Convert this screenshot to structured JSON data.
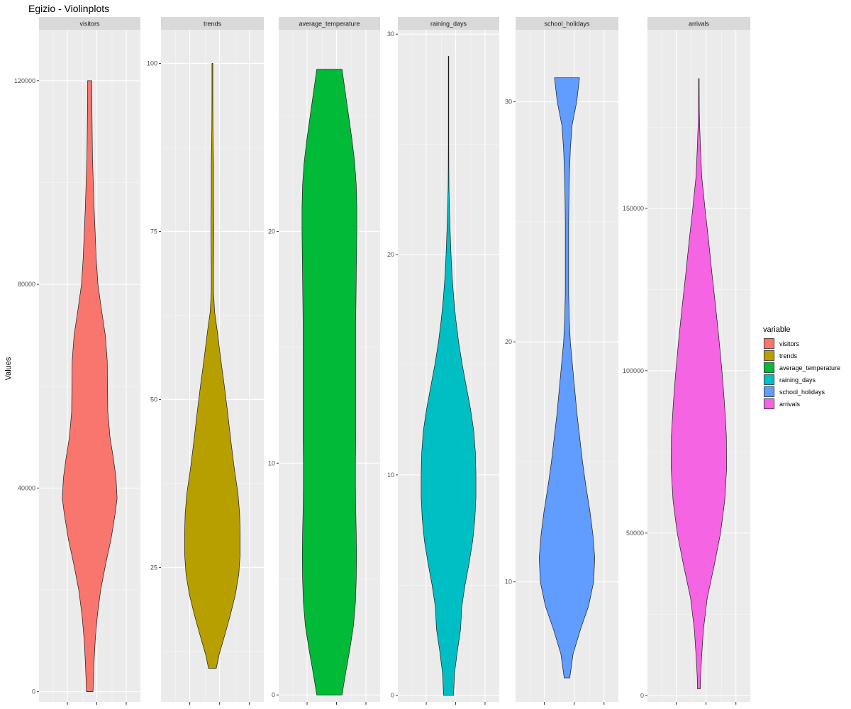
{
  "chart_data": {
    "type": "violin",
    "title": "Egizio - Violinplots",
    "ylabel": "Values",
    "legend": {
      "title": "variable",
      "placement": "right",
      "entries": [
        "visitors",
        "trends",
        "average_temperature",
        "raining_days",
        "school_holidays",
        "arrivals"
      ]
    },
    "facet_scales": "free_y",
    "panels": [
      {
        "name": "visitors",
        "color": "#F8766D",
        "ylim": [
          -2000,
          130000
        ],
        "ticks": [
          0,
          40000,
          80000,
          120000
        ],
        "tick_labels": [
          "0",
          "40000",
          "80000",
          "120000"
        ],
        "profile": [
          [
            0,
            0.12
          ],
          [
            2000,
            0.13
          ],
          [
            6000,
            0.16
          ],
          [
            10000,
            0.2
          ],
          [
            15000,
            0.28
          ],
          [
            20000,
            0.4
          ],
          [
            25000,
            0.58
          ],
          [
            30000,
            0.78
          ],
          [
            35000,
            0.93
          ],
          [
            38000,
            1.0
          ],
          [
            42000,
            0.96
          ],
          [
            46000,
            0.86
          ],
          [
            50000,
            0.74
          ],
          [
            55000,
            0.66
          ],
          [
            60000,
            0.65
          ],
          [
            65000,
            0.64
          ],
          [
            70000,
            0.57
          ],
          [
            75000,
            0.43
          ],
          [
            80000,
            0.3
          ],
          [
            85000,
            0.24
          ],
          [
            90000,
            0.2
          ],
          [
            95000,
            0.16
          ],
          [
            100000,
            0.13
          ],
          [
            105000,
            0.1
          ],
          [
            110000,
            0.09
          ],
          [
            115000,
            0.08
          ],
          [
            120000,
            0.075
          ]
        ]
      },
      {
        "name": "trends",
        "color": "#B79F00",
        "ylim": [
          5,
          105
        ],
        "ticks": [
          25,
          50,
          75,
          100
        ],
        "tick_labels": [
          "25",
          "50",
          "75",
          "100"
        ],
        "profile": [
          [
            10,
            0.14
          ],
          [
            12,
            0.24
          ],
          [
            15,
            0.45
          ],
          [
            18,
            0.65
          ],
          [
            21,
            0.83
          ],
          [
            24,
            0.95
          ],
          [
            27,
            1.0
          ],
          [
            30,
            1.0
          ],
          [
            33,
            0.98
          ],
          [
            36,
            0.92
          ],
          [
            40,
            0.78
          ],
          [
            44,
            0.66
          ],
          [
            48,
            0.55
          ],
          [
            52,
            0.43
          ],
          [
            56,
            0.3
          ],
          [
            60,
            0.18
          ],
          [
            63,
            0.08
          ],
          [
            66,
            0.04
          ],
          [
            70,
            0.04
          ],
          [
            75,
            0.05
          ],
          [
            80,
            0.04
          ],
          [
            85,
            0.04
          ],
          [
            90,
            0.02
          ],
          [
            95,
            0.015
          ],
          [
            100,
            0.015
          ]
        ]
      },
      {
        "name": "average_temperature",
        "color": "#00BA38",
        "ylim": [
          -0.3,
          28.7
        ],
        "ticks": [
          0,
          10,
          20
        ],
        "tick_labels": [
          "0",
          "10",
          "20"
        ],
        "profile": [
          [
            0,
            0.46
          ],
          [
            1,
            0.6
          ],
          [
            2,
            0.75
          ],
          [
            3,
            0.88
          ],
          [
            4,
            0.95
          ],
          [
            5,
            0.98
          ],
          [
            6,
            0.99
          ],
          [
            7,
            0.98
          ],
          [
            8,
            0.96
          ],
          [
            9,
            0.95
          ],
          [
            10,
            0.95
          ],
          [
            11,
            0.96
          ],
          [
            12,
            0.96
          ],
          [
            13,
            0.96
          ],
          [
            14,
            0.96
          ],
          [
            15,
            0.96
          ],
          [
            16,
            0.96
          ],
          [
            17,
            0.97
          ],
          [
            18,
            0.98
          ],
          [
            19,
            0.99
          ],
          [
            20,
            1.0
          ],
          [
            21,
            1.0
          ],
          [
            22,
            0.98
          ],
          [
            23,
            0.92
          ],
          [
            24,
            0.82
          ],
          [
            25,
            0.7
          ],
          [
            26,
            0.58
          ],
          [
            27,
            0.46
          ]
        ]
      },
      {
        "name": "raining_days",
        "color": "#00BFC4",
        "ylim": [
          -0.3,
          30.2
        ],
        "ticks": [
          0,
          10,
          20,
          30
        ],
        "tick_labels": [
          "0",
          "10",
          "20",
          "30"
        ],
        "profile": [
          [
            0,
            0.18
          ],
          [
            1,
            0.22
          ],
          [
            2,
            0.32
          ],
          [
            3,
            0.44
          ],
          [
            4,
            0.48
          ],
          [
            5,
            0.6
          ],
          [
            6,
            0.75
          ],
          [
            7,
            0.88
          ],
          [
            8,
            0.96
          ],
          [
            9,
            1.0
          ],
          [
            10,
            1.0
          ],
          [
            11,
            0.98
          ],
          [
            12,
            0.92
          ],
          [
            13,
            0.8
          ],
          [
            14,
            0.65
          ],
          [
            15,
            0.5
          ],
          [
            16,
            0.37
          ],
          [
            17,
            0.27
          ],
          [
            18,
            0.19
          ],
          [
            19,
            0.13
          ],
          [
            20,
            0.09
          ],
          [
            21,
            0.06
          ],
          [
            22,
            0.035
          ],
          [
            23,
            0.015
          ],
          [
            24,
            0.01
          ],
          [
            25,
            0.008
          ],
          [
            26,
            0.008
          ],
          [
            27,
            0.008
          ],
          [
            28,
            0.008
          ],
          [
            29,
            0.008
          ]
        ]
      },
      {
        "name": "school_holidays",
        "color": "#619CFF",
        "ylim": [
          5,
          33
        ],
        "ticks": [
          10,
          20,
          30
        ],
        "tick_labels": [
          "10",
          "20",
          "30"
        ],
        "profile": [
          [
            6,
            0.1
          ],
          [
            7,
            0.22
          ],
          [
            8,
            0.48
          ],
          [
            9,
            0.78
          ],
          [
            10,
            0.96
          ],
          [
            11,
            1.0
          ],
          [
            12,
            0.93
          ],
          [
            13,
            0.82
          ],
          [
            14,
            0.68
          ],
          [
            15,
            0.56
          ],
          [
            16,
            0.46
          ],
          [
            17,
            0.36
          ],
          [
            18,
            0.28
          ],
          [
            19,
            0.2
          ],
          [
            20,
            0.12
          ],
          [
            21,
            0.08
          ],
          [
            22,
            0.06
          ],
          [
            23,
            0.06
          ],
          [
            24,
            0.06
          ],
          [
            25,
            0.06
          ],
          [
            26,
            0.07
          ],
          [
            27,
            0.09
          ],
          [
            28,
            0.12
          ],
          [
            29,
            0.18
          ],
          [
            30,
            0.35
          ],
          [
            31,
            0.45
          ]
        ]
      },
      {
        "name": "arrivals",
        "color": "#F564E3",
        "ylim": [
          -2000,
          205000
        ],
        "ticks": [
          0,
          50000,
          100000,
          150000
        ],
        "tick_labels": [
          "0",
          "50000",
          "100000",
          "150000"
        ],
        "profile": [
          [
            2000,
            0.05
          ],
          [
            6000,
            0.06
          ],
          [
            12000,
            0.1
          ],
          [
            20000,
            0.16
          ],
          [
            30000,
            0.3
          ],
          [
            40000,
            0.55
          ],
          [
            50000,
            0.78
          ],
          [
            60000,
            0.93
          ],
          [
            70000,
            1.0
          ],
          [
            80000,
            0.99
          ],
          [
            90000,
            0.92
          ],
          [
            100000,
            0.83
          ],
          [
            110000,
            0.72
          ],
          [
            120000,
            0.6
          ],
          [
            130000,
            0.47
          ],
          [
            140000,
            0.35
          ],
          [
            150000,
            0.22
          ],
          [
            160000,
            0.1
          ],
          [
            170000,
            0.05
          ],
          [
            175000,
            0.03
          ],
          [
            180000,
            0.015
          ],
          [
            190000,
            0.01
          ]
        ]
      }
    ]
  }
}
